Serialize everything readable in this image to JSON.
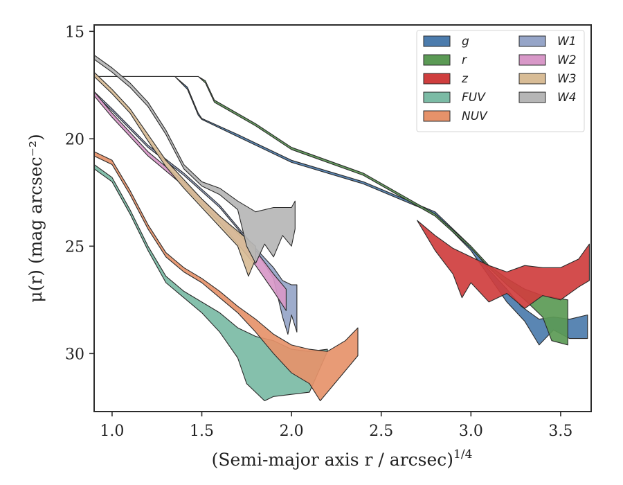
{
  "chart_data": {
    "type": "area",
    "xlabel": "(Semi-major axis r / arcsec)",
    "xlabel_sup": "1/4",
    "ylabel": "μ(r) (mag arcsec⁻²)",
    "xlim": [
      0.9,
      3.67
    ],
    "ylim": [
      32.7,
      14.7
    ],
    "y_inverted": true,
    "x_ticks": [
      1.0,
      1.5,
      2.0,
      2.5,
      3.0,
      3.5
    ],
    "x_tick_labels": [
      "1.0",
      "1.5",
      "2.0",
      "2.5",
      "3.0",
      "3.5"
    ],
    "y_ticks": [
      15,
      20,
      25,
      30
    ],
    "y_tick_labels": [
      "15",
      "20",
      "25",
      "30"
    ],
    "legend_position": "top-right",
    "legend_columns": 2,
    "series": [
      {
        "name": "g",
        "color": "#4c7cad",
        "upper": [
          [
            0.9,
            17.1
          ],
          [
            1.35,
            17.1
          ],
          [
            1.42,
            17.6
          ],
          [
            1.48,
            18.8
          ],
          [
            1.5,
            19.05
          ],
          [
            1.7,
            19.8
          ],
          [
            2.0,
            21.0
          ],
          [
            2.4,
            22.0
          ],
          [
            2.8,
            23.4
          ],
          [
            3.0,
            25.0
          ],
          [
            3.1,
            26.1
          ],
          [
            3.2,
            27.0
          ],
          [
            3.28,
            27.8
          ],
          [
            3.38,
            28.4
          ],
          [
            3.46,
            28.3
          ],
          [
            3.55,
            28.4
          ],
          [
            3.65,
            28.2
          ]
        ],
        "lower": [
          [
            0.9,
            17.1
          ],
          [
            1.35,
            17.1
          ],
          [
            1.42,
            17.7
          ],
          [
            1.48,
            18.9
          ],
          [
            1.5,
            19.1
          ],
          [
            1.7,
            19.9
          ],
          [
            2.0,
            21.1
          ],
          [
            2.4,
            22.1
          ],
          [
            2.8,
            23.5
          ],
          [
            3.0,
            25.2
          ],
          [
            3.1,
            26.4
          ],
          [
            3.2,
            27.6
          ],
          [
            3.3,
            28.5
          ],
          [
            3.38,
            29.6
          ],
          [
            3.46,
            28.9
          ],
          [
            3.55,
            29.3
          ],
          [
            3.65,
            29.3
          ]
        ]
      },
      {
        "name": "r",
        "color": "#5b9a55",
        "upper": [
          [
            0.9,
            17.1
          ],
          [
            1.48,
            17.1
          ],
          [
            1.52,
            17.3
          ],
          [
            1.57,
            18.2
          ],
          [
            1.8,
            19.3
          ],
          [
            2.0,
            20.4
          ],
          [
            2.4,
            21.6
          ],
          [
            2.8,
            23.5
          ],
          [
            3.0,
            25.0
          ],
          [
            3.1,
            25.9
          ],
          [
            3.2,
            26.5
          ],
          [
            3.3,
            27.0
          ],
          [
            3.4,
            27.3
          ],
          [
            3.54,
            27.5
          ]
        ],
        "lower": [
          [
            0.9,
            17.1
          ],
          [
            1.48,
            17.1
          ],
          [
            1.52,
            17.4
          ],
          [
            1.57,
            18.3
          ],
          [
            1.8,
            19.4
          ],
          [
            2.0,
            20.5
          ],
          [
            2.4,
            21.7
          ],
          [
            2.8,
            23.6
          ],
          [
            3.0,
            25.1
          ],
          [
            3.1,
            26.0
          ],
          [
            3.2,
            26.8
          ],
          [
            3.3,
            27.5
          ],
          [
            3.4,
            28.3
          ],
          [
            3.45,
            29.4
          ],
          [
            3.54,
            29.6
          ]
        ]
      },
      {
        "name": "z",
        "color": "#cf3e3e",
        "upper": [
          [
            2.7,
            23.8
          ],
          [
            2.8,
            24.5
          ],
          [
            2.9,
            25.1
          ],
          [
            3.0,
            25.5
          ],
          [
            3.1,
            25.9
          ],
          [
            3.2,
            26.2
          ],
          [
            3.3,
            25.9
          ],
          [
            3.4,
            26.0
          ],
          [
            3.5,
            26.0
          ],
          [
            3.6,
            25.6
          ],
          [
            3.66,
            24.9
          ]
        ],
        "lower": [
          [
            2.7,
            23.8
          ],
          [
            2.8,
            25.2
          ],
          [
            2.9,
            26.3
          ],
          [
            2.95,
            27.4
          ],
          [
            3.0,
            26.7
          ],
          [
            3.1,
            27.6
          ],
          [
            3.2,
            27.2
          ],
          [
            3.3,
            27.9
          ],
          [
            3.4,
            27.3
          ],
          [
            3.5,
            27.5
          ],
          [
            3.6,
            26.9
          ],
          [
            3.66,
            26.6
          ]
        ]
      },
      {
        "name": "FUV",
        "color": "#7bbba5",
        "upper": [
          [
            0.9,
            21.2
          ],
          [
            1.0,
            21.8
          ],
          [
            1.1,
            23.3
          ],
          [
            1.2,
            25.0
          ],
          [
            1.3,
            26.4
          ],
          [
            1.4,
            27.1
          ],
          [
            1.5,
            27.6
          ],
          [
            1.6,
            28.1
          ],
          [
            1.7,
            28.8
          ],
          [
            1.8,
            29.2
          ],
          [
            1.9,
            29.4
          ],
          [
            2.0,
            29.8
          ],
          [
            2.1,
            29.9
          ],
          [
            2.2,
            29.8
          ]
        ],
        "lower": [
          [
            0.9,
            21.4
          ],
          [
            1.0,
            22.0
          ],
          [
            1.1,
            23.5
          ],
          [
            1.2,
            25.2
          ],
          [
            1.3,
            26.7
          ],
          [
            1.4,
            27.4
          ],
          [
            1.5,
            28.1
          ],
          [
            1.6,
            29.0
          ],
          [
            1.7,
            30.2
          ],
          [
            1.75,
            31.4
          ],
          [
            1.8,
            31.8
          ],
          [
            1.85,
            32.2
          ],
          [
            1.9,
            32.0
          ],
          [
            2.0,
            31.9
          ],
          [
            2.1,
            31.8
          ],
          [
            2.2,
            29.9
          ]
        ]
      },
      {
        "name": "NUV",
        "color": "#e6926a",
        "upper": [
          [
            0.9,
            20.6
          ],
          [
            1.0,
            21.0
          ],
          [
            1.1,
            22.4
          ],
          [
            1.2,
            24.0
          ],
          [
            1.3,
            25.3
          ],
          [
            1.4,
            26.0
          ],
          [
            1.5,
            26.5
          ],
          [
            1.6,
            27.1
          ],
          [
            1.7,
            27.8
          ],
          [
            1.8,
            28.4
          ],
          [
            1.9,
            29.1
          ],
          [
            2.0,
            29.6
          ],
          [
            2.1,
            29.8
          ],
          [
            2.2,
            29.9
          ],
          [
            2.3,
            29.4
          ],
          [
            2.37,
            28.8
          ]
        ],
        "lower": [
          [
            0.9,
            20.8
          ],
          [
            1.0,
            21.2
          ],
          [
            1.1,
            22.6
          ],
          [
            1.2,
            24.2
          ],
          [
            1.3,
            25.5
          ],
          [
            1.4,
            26.2
          ],
          [
            1.5,
            26.7
          ],
          [
            1.6,
            27.4
          ],
          [
            1.7,
            28.1
          ],
          [
            1.8,
            29.0
          ],
          [
            1.9,
            30.0
          ],
          [
            2.0,
            30.9
          ],
          [
            2.1,
            31.4
          ],
          [
            2.16,
            32.2
          ],
          [
            2.25,
            31.3
          ],
          [
            2.37,
            30.1
          ]
        ]
      },
      {
        "name": "W1",
        "color": "#96a5c8",
        "upper": [
          [
            0.9,
            17.8
          ],
          [
            1.0,
            18.6
          ],
          [
            1.2,
            20.3
          ],
          [
            1.4,
            21.6
          ],
          [
            1.6,
            23.1
          ],
          [
            1.8,
            25.1
          ],
          [
            1.9,
            26.0
          ],
          [
            1.95,
            26.6
          ],
          [
            2.0,
            26.8
          ],
          [
            2.03,
            26.8
          ]
        ],
        "lower": [
          [
            0.9,
            17.9
          ],
          [
            1.0,
            18.7
          ],
          [
            1.2,
            20.4
          ],
          [
            1.4,
            21.7
          ],
          [
            1.6,
            23.2
          ],
          [
            1.8,
            25.2
          ],
          [
            1.9,
            26.5
          ],
          [
            1.95,
            28.3
          ],
          [
            1.98,
            29.1
          ],
          [
            2.0,
            28.2
          ],
          [
            2.03,
            29.0
          ]
        ]
      },
      {
        "name": "W2",
        "color": "#d898c8",
        "upper": [
          [
            0.9,
            17.8
          ],
          [
            1.0,
            18.8
          ],
          [
            1.2,
            20.6
          ],
          [
            1.4,
            22.0
          ],
          [
            1.6,
            23.6
          ],
          [
            1.7,
            24.4
          ],
          [
            1.8,
            25.2
          ],
          [
            1.9,
            26.3
          ],
          [
            1.97,
            27.0
          ]
        ],
        "lower": [
          [
            0.9,
            18.0
          ],
          [
            1.0,
            19.0
          ],
          [
            1.2,
            20.8
          ],
          [
            1.4,
            22.2
          ],
          [
            1.6,
            23.9
          ],
          [
            1.7,
            24.9
          ],
          [
            1.8,
            25.9
          ],
          [
            1.9,
            27.1
          ],
          [
            1.97,
            28.0
          ]
        ]
      },
      {
        "name": "W3",
        "color": "#d8bc96",
        "upper": [
          [
            0.9,
            16.9
          ],
          [
            1.0,
            17.7
          ],
          [
            1.1,
            18.6
          ],
          [
            1.2,
            19.8
          ],
          [
            1.3,
            21.0
          ],
          [
            1.4,
            21.9
          ],
          [
            1.5,
            22.8
          ],
          [
            1.6,
            23.6
          ],
          [
            1.7,
            24.3
          ],
          [
            1.8,
            25.0
          ]
        ],
        "lower": [
          [
            0.9,
            17.1
          ],
          [
            1.0,
            17.9
          ],
          [
            1.1,
            18.8
          ],
          [
            1.2,
            20.1
          ],
          [
            1.3,
            21.3
          ],
          [
            1.4,
            22.3
          ],
          [
            1.5,
            23.2
          ],
          [
            1.6,
            24.1
          ],
          [
            1.7,
            25.0
          ],
          [
            1.76,
            26.4
          ],
          [
            1.8,
            25.6
          ]
        ]
      },
      {
        "name": "W4",
        "color": "#b6b6b6",
        "upper": [
          [
            0.9,
            16.1
          ],
          [
            1.0,
            16.7
          ],
          [
            1.1,
            17.4
          ],
          [
            1.2,
            18.3
          ],
          [
            1.3,
            19.6
          ],
          [
            1.4,
            21.2
          ],
          [
            1.5,
            22.0
          ],
          [
            1.6,
            22.3
          ],
          [
            1.7,
            22.9
          ],
          [
            1.8,
            23.4
          ],
          [
            1.9,
            23.2
          ],
          [
            2.0,
            23.2
          ],
          [
            2.02,
            22.9
          ]
        ],
        "lower": [
          [
            0.9,
            16.3
          ],
          [
            1.0,
            16.9
          ],
          [
            1.1,
            17.6
          ],
          [
            1.2,
            18.5
          ],
          [
            1.3,
            19.8
          ],
          [
            1.4,
            21.4
          ],
          [
            1.5,
            22.2
          ],
          [
            1.6,
            22.6
          ],
          [
            1.7,
            23.3
          ],
          [
            1.75,
            25.0
          ],
          [
            1.8,
            25.8
          ],
          [
            1.85,
            24.9
          ],
          [
            1.9,
            25.5
          ],
          [
            1.95,
            24.5
          ],
          [
            2.0,
            25.0
          ],
          [
            2.02,
            24.2
          ]
        ]
      }
    ]
  }
}
